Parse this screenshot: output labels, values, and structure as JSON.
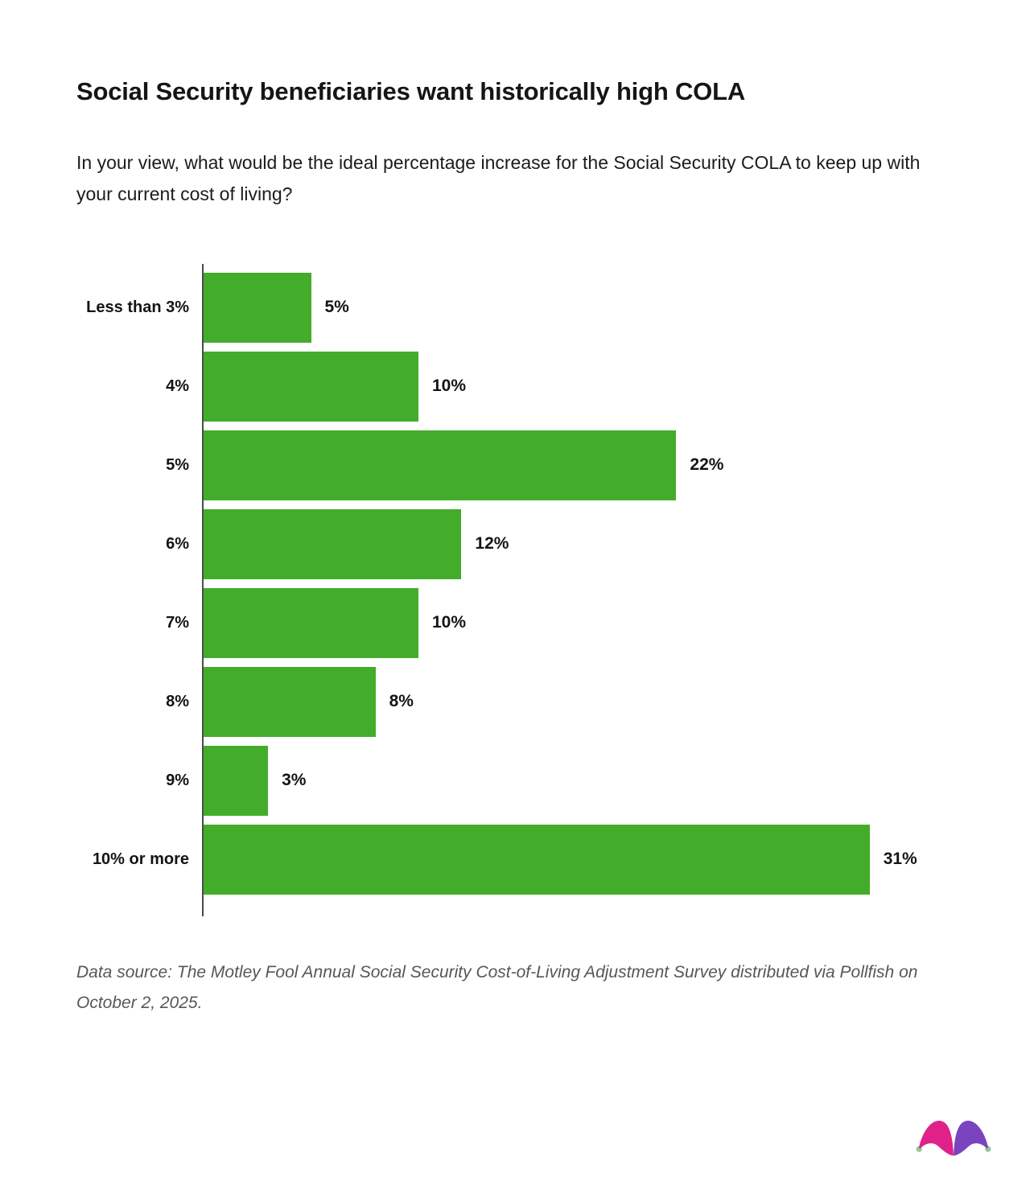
{
  "header": {
    "title": "Social Security beneficiaries want historically high COLA",
    "subtitle": "In your view, what would be the ideal percentage increase for the Social Security COLA to keep up with your current cost of living?"
  },
  "chart_data": {
    "type": "bar",
    "orientation": "horizontal",
    "title": "Social Security beneficiaries want historically high COLA",
    "xlabel": "",
    "ylabel": "",
    "categories": [
      "Less than 3%",
      "4%",
      "5%",
      "6%",
      "7%",
      "8%",
      "9%",
      "10% or more"
    ],
    "values": [
      5,
      10,
      22,
      12,
      10,
      8,
      3,
      31
    ],
    "value_labels": [
      "5%",
      "10%",
      "22%",
      "12%",
      "10%",
      "8%",
      "3%",
      "31%"
    ],
    "xlim": [
      0,
      33
    ],
    "grid": false,
    "legend": false,
    "bar_color": "#43ad2b"
  },
  "footer": {
    "source": "Data source: The Motley Fool Annual Social Security Cost-of-Living Adjustment Survey distributed via Pollfish on October 2, 2025."
  },
  "logo": {
    "name": "motley-fool-jester-hat",
    "colors": {
      "left_lobe": "#e0218a",
      "right_lobe": "#7a44be",
      "balls": "#98c695"
    }
  },
  "colors": {
    "bar": "#43ad2b",
    "axis": "#4b4b4b",
    "text": "#141414",
    "source_text": "#54585a",
    "background": "#ffffff"
  }
}
